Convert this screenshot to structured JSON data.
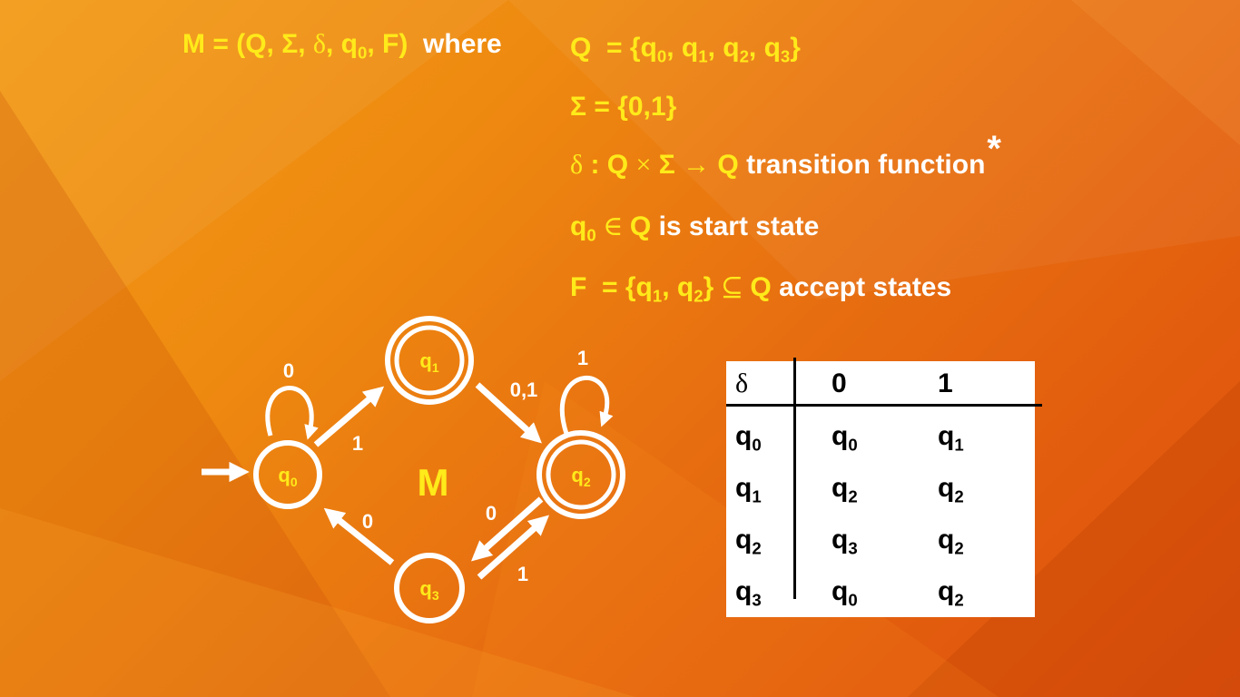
{
  "definition": {
    "machine": "M",
    "equals": " = ",
    "tuple_open": "(Q, Σ, ",
    "delta": "δ",
    "tuple_q": ", q",
    "tuple_q_sub": "0",
    "tuple_close": ", F)",
    "where": "where"
  },
  "states_line": {
    "lhs": "Q",
    "eq": " = {q",
    "items": [
      "0",
      "1",
      "2",
      "3"
    ],
    "sep": ", q",
    "close": "}"
  },
  "alphabet_line": {
    "text": "Σ = {0,1}"
  },
  "transition_line": {
    "delta": "δ",
    "colon_q": " : Q ",
    "times": "×",
    "sigma": " Σ ",
    "arrow": "→",
    "q": " Q ",
    "desc": "transition function",
    "star": "*"
  },
  "start_line": {
    "q": "q",
    "sub": "0",
    "in": " ∈ ",
    "q_set": "Q",
    "desc": " is start state"
  },
  "accept_line": {
    "lhs": "F",
    "eq": " = {q",
    "sub1": "1",
    "mid": ", q",
    "sub2": "2",
    "close": "}",
    "subset": " ⊆ ",
    "q_set": "Q",
    "desc": " accept states"
  },
  "diagram": {
    "machine_label": "M",
    "state_letter": "q",
    "states": [
      {
        "id": "q0",
        "sub": "0",
        "accept": false,
        "start": true
      },
      {
        "id": "q1",
        "sub": "1",
        "accept": true,
        "start": false
      },
      {
        "id": "q2",
        "sub": "2",
        "accept": true,
        "start": false
      },
      {
        "id": "q3",
        "sub": "3",
        "accept": false,
        "start": false
      }
    ],
    "edge_labels": {
      "q0_self": "0",
      "q0_q1": "1",
      "q1_q2": "0,1",
      "q2_self": "1",
      "q2_q3": "0",
      "q3_q2": "1",
      "q3_q0": "0"
    }
  },
  "table": {
    "header": [
      "δ",
      "0",
      "1"
    ],
    "letter": "q",
    "rows": [
      {
        "state": "0",
        "on0": "0",
        "on1": "1"
      },
      {
        "state": "1",
        "on0": "2",
        "on1": "2"
      },
      {
        "state": "2",
        "on0": "3",
        "on1": "2"
      },
      {
        "state": "3",
        "on0": "0",
        "on1": "2"
      }
    ]
  },
  "colors": {
    "yellow": "#ffea1a",
    "white": "#ffffff",
    "black": "#000000"
  }
}
